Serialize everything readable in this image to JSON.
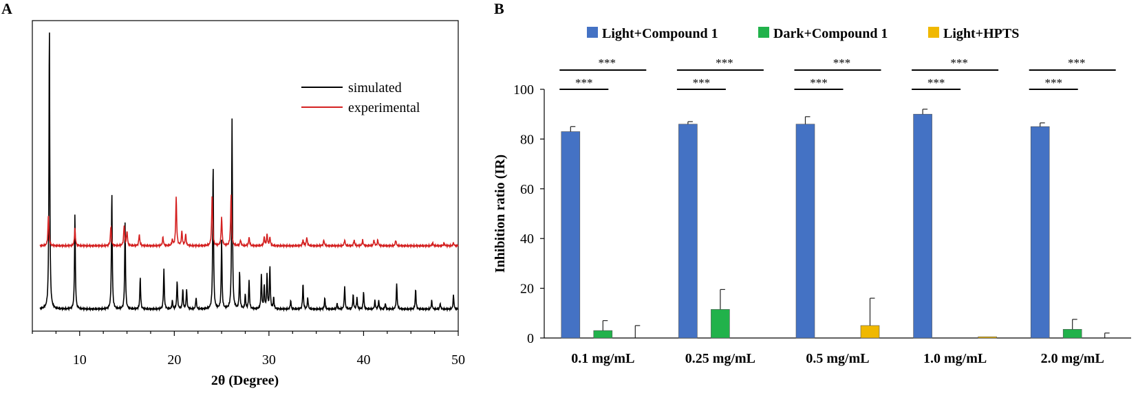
{
  "chart_data": [
    {
      "panel": "A",
      "type": "line",
      "xlabel": "2θ (Degree)",
      "ylabel": "",
      "xlim": [
        5,
        50
      ],
      "xticks": [
        "10",
        "20",
        "30",
        "40",
        "50"
      ],
      "legend": {
        "position": "top-right",
        "entries": [
          "simulated",
          "experimental"
        ]
      },
      "series": [
        {
          "name": "simulated",
          "color": "#000000",
          "baseline": 0,
          "peaks": [
            [
              6.8,
              100
            ],
            [
              9.5,
              33
            ],
            [
              13.4,
              41
            ],
            [
              14.8,
              30
            ],
            [
              16.4,
              11
            ],
            [
              18.9,
              14
            ],
            [
              19.8,
              3
            ],
            [
              20.3,
              10
            ],
            [
              20.9,
              7
            ],
            [
              21.3,
              7
            ],
            [
              22.3,
              4
            ],
            [
              24.1,
              51
            ],
            [
              25.0,
              24
            ],
            [
              26.1,
              66
            ],
            [
              26.9,
              13
            ],
            [
              27.5,
              5
            ],
            [
              27.9,
              10
            ],
            [
              29.2,
              12
            ],
            [
              29.5,
              8
            ],
            [
              29.8,
              12
            ],
            [
              30.1,
              15
            ],
            [
              30.5,
              4
            ],
            [
              32.3,
              3
            ],
            [
              33.6,
              9
            ],
            [
              34.1,
              4
            ],
            [
              35.9,
              4
            ],
            [
              37.2,
              2
            ],
            [
              38.0,
              8
            ],
            [
              38.9,
              5
            ],
            [
              39.3,
              4
            ],
            [
              40.0,
              6
            ],
            [
              41.2,
              3
            ],
            [
              41.6,
              3
            ],
            [
              42.3,
              2
            ],
            [
              43.5,
              9
            ],
            [
              45.5,
              7
            ],
            [
              47.2,
              3
            ],
            [
              48.1,
              2
            ],
            [
              49.5,
              5
            ]
          ]
        },
        {
          "name": "experimental",
          "color": "#d42020",
          "baseline": 22,
          "peaks": [
            [
              6.7,
              11
            ],
            [
              9.5,
              6
            ],
            [
              13.3,
              7
            ],
            [
              14.7,
              7
            ],
            [
              15.0,
              5
            ],
            [
              16.3,
              4
            ],
            [
              18.8,
              3
            ],
            [
              19.8,
              2
            ],
            [
              20.2,
              17
            ],
            [
              20.8,
              5
            ],
            [
              21.2,
              4
            ],
            [
              24.0,
              18
            ],
            [
              25.0,
              10
            ],
            [
              26.0,
              18
            ],
            [
              27.0,
              2
            ],
            [
              27.9,
              3
            ],
            [
              29.5,
              3
            ],
            [
              29.8,
              4
            ],
            [
              30.1,
              3
            ],
            [
              33.6,
              2
            ],
            [
              34.0,
              3
            ],
            [
              35.8,
              2
            ],
            [
              38.0,
              2
            ],
            [
              39.0,
              2
            ],
            [
              39.9,
              2
            ],
            [
              41.1,
              2
            ],
            [
              41.5,
              2
            ],
            [
              43.4,
              2
            ],
            [
              47.3,
              1
            ],
            [
              48.5,
              1
            ],
            [
              49.5,
              1
            ]
          ]
        }
      ]
    },
    {
      "panel": "B",
      "type": "bar",
      "title": "",
      "ylabel": "Inhibition ratio (IR)",
      "xlabel": "",
      "ylim": [
        0,
        100
      ],
      "yticks": [
        "0",
        "20",
        "40",
        "60",
        "80",
        "100"
      ],
      "categories": [
        "0.1 mg/mL",
        "0.25 mg/mL",
        "0.5 mg/mL",
        "1.0 mg/mL",
        "2.0 mg/mL"
      ],
      "legend": {
        "position": "top"
      },
      "series": [
        {
          "name": "Light+Compound 1",
          "color": "#4472c4",
          "values": [
            83,
            86,
            86,
            90,
            85
          ],
          "errors": [
            2,
            1,
            3,
            2,
            1.5
          ]
        },
        {
          "name": "Dark+Compound 1",
          "color": "#21b24b",
          "values": [
            3,
            11.5,
            0,
            0,
            3.5
          ],
          "errors": [
            4,
            8,
            0,
            0,
            4
          ]
        },
        {
          "name": "Light+HPTS",
          "color": "#f0b800",
          "values": [
            0,
            0,
            5,
            0.5,
            0
          ],
          "errors": [
            5,
            0,
            11,
            0,
            2
          ]
        }
      ],
      "significance_label": "***"
    }
  ]
}
